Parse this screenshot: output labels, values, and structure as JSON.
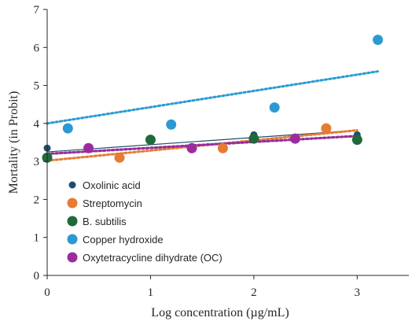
{
  "chart_data": {
    "type": "scatter",
    "xlabel": "Log concentration (µg/mL)",
    "ylabel": "Mortality (in Probit)",
    "xlim": [
      0,
      3.5
    ],
    "ylim": [
      0,
      7
    ],
    "xticks": [
      "0",
      "1",
      "2",
      "3"
    ],
    "yticks": [
      "0",
      "1",
      "2",
      "3",
      "4",
      "5",
      "6",
      "7"
    ],
    "grid": false,
    "legend": "lower-left inside plot",
    "series": [
      {
        "name": "Oxolinic acid",
        "color": "#1f4e6b",
        "trendline": "solid",
        "x": [
          0,
          1,
          2,
          3
        ],
        "y": [
          3.35,
          3.55,
          3.7,
          3.7
        ],
        "trend": [
          3.25,
          3.82
        ]
      },
      {
        "name": "Streptomycin",
        "color": "#e87a35",
        "trendline": "dotted",
        "x": [
          0.7,
          1.7,
          2.7
        ],
        "y": [
          3.1,
          3.35,
          3.87
        ],
        "trend": [
          3.02,
          3.82
        ]
      },
      {
        "name": "B. subtilis",
        "color": "#1e6b3a",
        "trendline": "dotted",
        "x": [
          0,
          1,
          2,
          3
        ],
        "y": [
          3.1,
          3.57,
          3.6,
          3.57
        ],
        "trend": [
          3.2,
          3.67
        ]
      },
      {
        "name": "Copper hydroxide",
        "color": "#2b9ad2",
        "trendline": "dotted",
        "x": [
          0.2,
          1.2,
          2.2,
          3.2
        ],
        "y": [
          3.87,
          3.97,
          4.42,
          6.2
        ],
        "trend": [
          4.0,
          5.37
        ]
      },
      {
        "name": "Oxytetracycline dihydrate (OC)",
        "color": "#9b2b9f",
        "trendline": "dotted",
        "x": [
          0.4,
          1.4,
          2.4
        ],
        "y": [
          3.35,
          3.35,
          3.6
        ],
        "trend": [
          3.2,
          3.67
        ]
      }
    ]
  }
}
